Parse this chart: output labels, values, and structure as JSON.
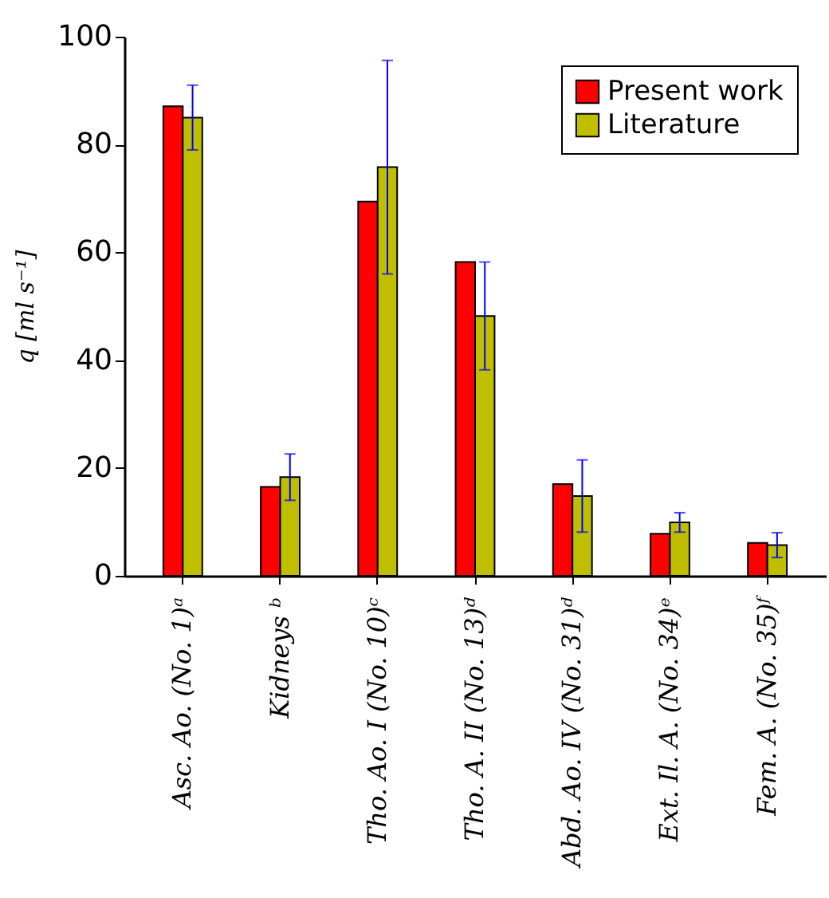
{
  "chart_data": {
    "type": "bar",
    "ylabel": "q  [ml s⁻¹]",
    "categories": [
      "Asc. Ao. (No. 1)ᵃ",
      "Kidneys ᵇ",
      "Tho. Ao. I (No. 10)ᶜ",
      "Tho. A. II (No. 13)ᵈ",
      "Abd. Ao. IV (No. 31)ᵈ",
      "Ext. Il. A. (No. 34)ᵉ",
      "Fem. A. (No. 35)ᶠ"
    ],
    "series": [
      {
        "name": "Present work",
        "color": "#ff0000",
        "values": [
          87.1,
          16.5,
          69.4,
          58.2,
          17.0,
          7.8,
          6.1
        ]
      },
      {
        "name": "Literature",
        "color": "#bfbf00",
        "values": [
          85.0,
          18.3,
          75.8,
          48.2,
          14.8,
          9.9,
          5.7
        ],
        "errors": [
          6.0,
          4.3,
          19.8,
          10.0,
          6.7,
          1.8,
          2.3
        ]
      }
    ],
    "ylim": [
      0,
      100
    ],
    "yticks": [
      0,
      20,
      40,
      60,
      80,
      100
    ],
    "grid": false,
    "legend": "top right"
  }
}
